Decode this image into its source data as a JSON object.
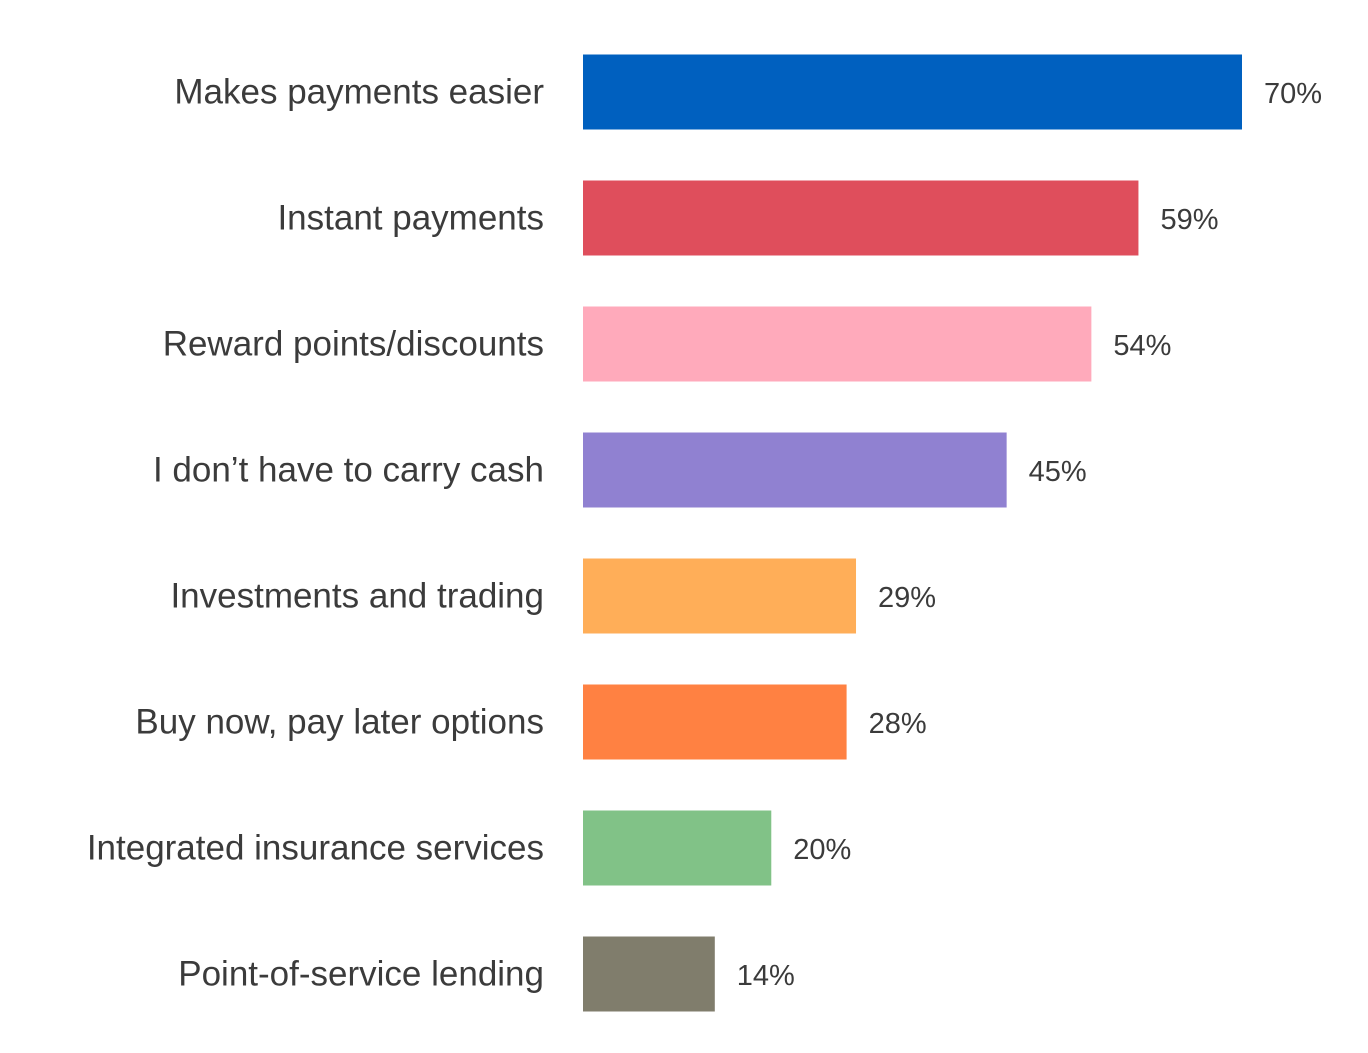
{
  "chart_data": {
    "type": "bar",
    "orientation": "horizontal",
    "categories": [
      "Makes payments easier",
      "Instant payments",
      "Reward points/discounts",
      "I don’t have to carry cash",
      "Investments and trading",
      "Buy now, pay later options",
      "Integrated insurance services",
      "Point-of-service lending"
    ],
    "values": [
      70,
      59,
      54,
      45,
      29,
      28,
      20,
      14
    ],
    "value_labels": [
      "70%",
      "59%",
      "54%",
      "45%",
      "29%",
      "28%",
      "20%",
      "14%"
    ],
    "colors": [
      "#0060BF",
      "#DF4E5C",
      "#FFAABB",
      "#9081D1",
      "#FFAE58",
      "#FF8142",
      "#81C287",
      "#807D6C"
    ],
    "unit": "%",
    "xlim": [
      0,
      70
    ],
    "grid": false,
    "legend": "none"
  }
}
